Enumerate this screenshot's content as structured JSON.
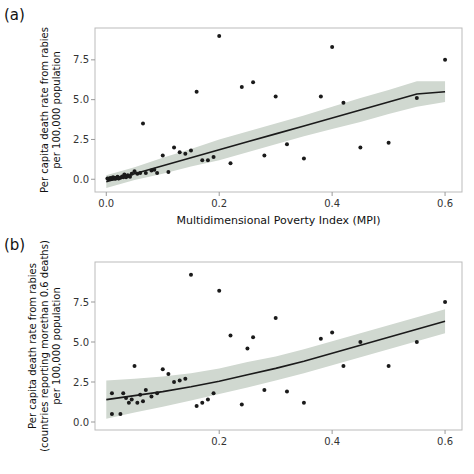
{
  "chart_data": [
    {
      "type": "scatter",
      "title": "(a)",
      "x_label": "Multidimensional Poverty Index (MPI)",
      "y_label": "Per capita death rate from rabies\nper 100,000 population",
      "xlim": [
        -0.02,
        0.63
      ],
      "ylim": [
        -0.8,
        9.5
      ],
      "xticks": [
        {
          "value": 0,
          "label": "0.0"
        },
        0.2,
        0.4,
        0.6
      ],
      "yticks": [
        {
          "value": 0,
          "label": "0.0"
        },
        2.5,
        {
          "value": 5,
          "label": "5.0"
        },
        7.5
      ],
      "grid": false,
      "series": [
        {
          "type": "area",
          "color": "#d0d8d0",
          "x": [
            0.0,
            0.05,
            0.1,
            0.15,
            0.2,
            0.25,
            0.3,
            0.35,
            0.4,
            0.45,
            0.5,
            0.55,
            0.6
          ],
          "lower": [
            -0.55,
            -0.05,
            0.35,
            0.8,
            1.2,
            1.7,
            2.2,
            2.7,
            3.15,
            3.6,
            4.1,
            4.55,
            4.85
          ],
          "upper": [
            0.25,
            0.75,
            1.35,
            1.9,
            2.5,
            3.0,
            3.5,
            4.0,
            4.55,
            5.1,
            5.6,
            6.15,
            6.15
          ]
        },
        {
          "type": "line",
          "color": "#1a1a1a",
          "x": [
            0.0,
            0.05,
            0.1,
            0.15,
            0.2,
            0.25,
            0.3,
            0.35,
            0.4,
            0.45,
            0.5,
            0.55,
            0.6
          ],
          "values": [
            -0.15,
            0.35,
            0.85,
            1.35,
            1.85,
            2.35,
            2.85,
            3.35,
            3.85,
            4.35,
            4.85,
            5.35,
            5.5
          ]
        },
        {
          "type": "scatter",
          "color": "#1a1a1a",
          "x": [
            0.002,
            0.003,
            0.004,
            0.005,
            0.006,
            0.007,
            0.008,
            0.009,
            0.01,
            0.012,
            0.013,
            0.015,
            0.016,
            0.017,
            0.018,
            0.02,
            0.021,
            0.022,
            0.025,
            0.028,
            0.03,
            0.032,
            0.035,
            0.038,
            0.04,
            0.042,
            0.045,
            0.05,
            0.055,
            0.06,
            0.065,
            0.07,
            0.08,
            0.085,
            0.09,
            0.1,
            0.11,
            0.12,
            0.13,
            0.14,
            0.15,
            0.16,
            0.17,
            0.18,
            0.19,
            0.2,
            0.22,
            0.24,
            0.26,
            0.28,
            0.3,
            0.32,
            0.35,
            0.38,
            0.4,
            0.42,
            0.45,
            0.5,
            0.55,
            0.6
          ],
          "values": [
            0.05,
            0.03,
            0.02,
            0.04,
            0.01,
            0.08,
            0.02,
            0.03,
            0.06,
            0.12,
            0.05,
            0.08,
            0.04,
            0.06,
            0.1,
            0.15,
            0.07,
            0.05,
            0.1,
            0.18,
            0.12,
            0.3,
            0.12,
            0.25,
            0.2,
            0.15,
            0.35,
            0.5,
            0.35,
            0.4,
            3.5,
            0.4,
            0.55,
            0.6,
            0.4,
            1.5,
            0.45,
            2.0,
            1.7,
            1.6,
            1.8,
            5.5,
            1.2,
            1.2,
            1.4,
            9.0,
            1.0,
            5.8,
            6.1,
            1.5,
            5.2,
            2.2,
            1.3,
            5.2,
            8.3,
            4.8,
            2.0,
            2.3,
            5.1,
            7.5
          ]
        }
      ]
    },
    {
      "type": "scatter",
      "title": "(b)",
      "y_label": "Per capita death rate from rabies\n(countries reporting morethan 0.6 deaths)\nper 100,000 population",
      "xlim": [
        -0.02,
        0.63
      ],
      "ylim": [
        -0.5,
        10.0
      ],
      "xticks": [
        0.2,
        0.4,
        0.6
      ],
      "yticks": [
        {
          "value": 0,
          "label": "0.0"
        },
        2.5,
        {
          "value": 5,
          "label": "5.0"
        },
        7.5
      ],
      "grid": false,
      "series": [
        {
          "type": "area",
          "color": "#d0d8d0",
          "x": [
            0.0,
            0.05,
            0.1,
            0.15,
            0.2,
            0.25,
            0.3,
            0.35,
            0.4,
            0.45,
            0.5,
            0.55,
            0.6
          ],
          "lower": [
            0.2,
            0.6,
            0.95,
            1.35,
            1.75,
            2.15,
            2.6,
            3.05,
            3.55,
            4.05,
            4.55,
            5.05,
            5.55
          ],
          "upper": [
            2.6,
            2.7,
            2.85,
            3.05,
            3.35,
            3.75,
            4.1,
            4.55,
            5.05,
            5.55,
            6.05,
            6.55,
            7.05
          ]
        },
        {
          "type": "line",
          "color": "#1a1a1a",
          "x": [
            0.0,
            0.05,
            0.1,
            0.15,
            0.2,
            0.25,
            0.3,
            0.35,
            0.4,
            0.45,
            0.5,
            0.55,
            0.6
          ],
          "values": [
            1.4,
            1.65,
            1.9,
            2.2,
            2.55,
            2.95,
            3.35,
            3.8,
            4.3,
            4.8,
            5.3,
            5.8,
            6.3
          ]
        },
        {
          "type": "scatter",
          "color": "#1a1a1a",
          "x": [
            0.01,
            0.01,
            0.025,
            0.03,
            0.035,
            0.04,
            0.045,
            0.05,
            0.055,
            0.06,
            0.065,
            0.07,
            0.08,
            0.09,
            0.1,
            0.11,
            0.12,
            0.13,
            0.14,
            0.15,
            0.16,
            0.17,
            0.18,
            0.19,
            0.2,
            0.22,
            0.24,
            0.25,
            0.26,
            0.28,
            0.3,
            0.32,
            0.35,
            0.38,
            0.4,
            0.42,
            0.45,
            0.5,
            0.55,
            0.6
          ],
          "values": [
            1.8,
            0.5,
            0.5,
            1.8,
            1.5,
            1.2,
            1.4,
            3.5,
            1.2,
            1.7,
            1.3,
            2.0,
            1.6,
            1.8,
            3.3,
            3.0,
            2.5,
            2.6,
            2.7,
            9.2,
            1.0,
            1.2,
            1.4,
            1.8,
            8.2,
            5.4,
            1.1,
            4.6,
            5.3,
            2.0,
            6.5,
            1.9,
            1.2,
            5.2,
            5.6,
            3.5,
            5.0,
            3.5,
            5.0,
            7.5
          ]
        }
      ]
    }
  ]
}
